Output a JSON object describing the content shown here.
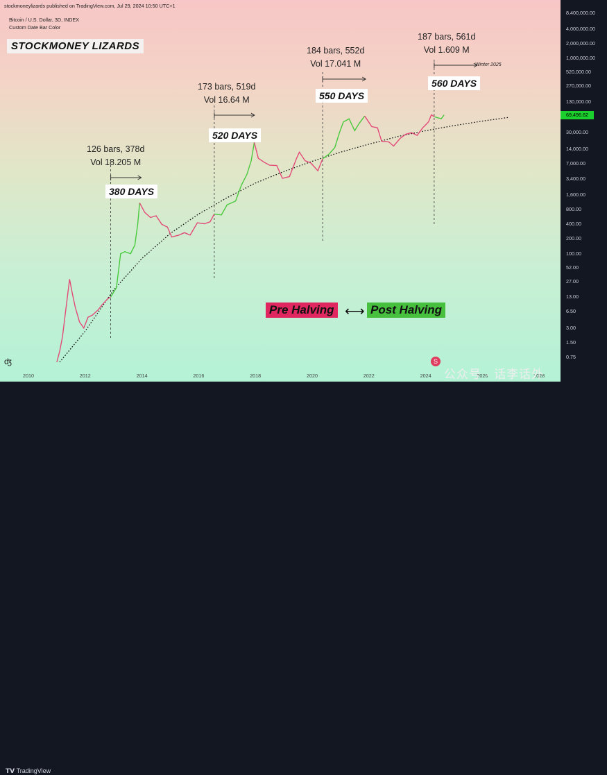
{
  "header": {
    "published": "stockmoneylizards published on TradingView.com, Jul 29, 2024 10:50 UTC+1",
    "symbol": "Bitcoin / U.S. Dollar, 3D, INDEX",
    "subtitle": "Custom Date Bar Color"
  },
  "brand": "STOCKMONEY LIZARDS",
  "annotations": [
    {
      "bars": "126 bars, 378d",
      "vol": "Vol 18.205 M",
      "days": "380 DAYS"
    },
    {
      "bars": "173 bars, 519d",
      "vol": "Vol 16.64 M",
      "days": "520 DAYS"
    },
    {
      "bars": "184 bars, 552d",
      "vol": "Vol 17.041 M",
      "days": "550 DAYS"
    },
    {
      "bars": "187 bars, 561d",
      "vol": "Vol 1.609 M",
      "days": "560 DAYS"
    }
  ],
  "winter_label": "Winter 2025",
  "legend": {
    "pre": "Pre Halving",
    "arrow": "⟷",
    "post": "Post Halving"
  },
  "price_label": "69,496.62",
  "footer": {
    "tradingview": "TradingView",
    "watermark": "公众号 · 话李话外"
  },
  "side_icon": "ʤ",
  "logo_mark": "S",
  "colors": {
    "pre_halving": "#e0275f",
    "post_halving": "#47c03f",
    "price_tag": "#1bd02c",
    "dark_bg": "#131722",
    "pink_line": "#e34a78",
    "green_line": "#49c93d"
  },
  "chart_data": {
    "type": "line",
    "yscale": "log",
    "ylim": [
      0.6,
      9000000
    ],
    "xlim": [
      2009.5,
      2028.6
    ],
    "y_ticks": [
      "8,400,000.00",
      "4,000,000.00",
      "2,000,000.00",
      "1,000,000.00",
      "520,000.00",
      "270,000.00",
      "130,000.00",
      "69,496.62",
      "30,000.00",
      "14,000.00",
      "7,000.00",
      "3,400.00",
      "1,600.00",
      "800.00",
      "400.00",
      "200.00",
      "100.00",
      "52.00",
      "27.00",
      "13.00",
      "6.50",
      "3.00",
      "1.50",
      "0.75"
    ],
    "x_ticks": [
      "2010",
      "2012",
      "2014",
      "2016",
      "2018",
      "2020",
      "2022",
      "2024",
      "2026",
      "2028"
    ],
    "series": [
      {
        "name": "",
        "segments": [
          {
            "phase": "pre",
            "points": [
              [
                2011.0,
                0.6
              ],
              [
                2011.1,
                1.0
              ],
              [
                2011.2,
                2.0
              ],
              [
                2011.3,
                6.0
              ],
              [
                2011.45,
                30.0
              ],
              [
                2011.55,
                15.0
              ],
              [
                2011.65,
                8.0
              ],
              [
                2011.8,
                4.0
              ],
              [
                2011.95,
                3.0
              ],
              [
                2012.1,
                5.0
              ],
              [
                2012.25,
                5.5
              ],
              [
                2012.45,
                7.0
              ],
              [
                2012.6,
                9.0
              ],
              [
                2012.8,
                12.0
              ],
              [
                2012.9,
                13.0
              ]
            ]
          },
          {
            "phase": "post",
            "points": [
              [
                2012.9,
                13.0
              ],
              [
                2013.1,
                20.0
              ],
              [
                2013.25,
                100.0
              ],
              [
                2013.4,
                110.0
              ],
              [
                2013.6,
                100.0
              ],
              [
                2013.75,
                150.0
              ],
              [
                2013.85,
                400.0
              ],
              [
                2013.92,
                1100.0
              ]
            ]
          },
          {
            "phase": "pre",
            "points": [
              [
                2013.92,
                1100.0
              ],
              [
                2014.1,
                700.0
              ],
              [
                2014.3,
                550.0
              ],
              [
                2014.5,
                600.0
              ],
              [
                2014.7,
                400.0
              ],
              [
                2014.9,
                350.0
              ],
              [
                2015.05,
                220.0
              ],
              [
                2015.3,
                240.0
              ],
              [
                2015.5,
                270.0
              ],
              [
                2015.7,
                240.0
              ],
              [
                2015.95,
                430.0
              ],
              [
                2016.2,
                410.0
              ],
              [
                2016.4,
                450.0
              ],
              [
                2016.55,
                650.0
              ]
            ]
          },
          {
            "phase": "post",
            "points": [
              [
                2016.55,
                650.0
              ],
              [
                2016.8,
                620.0
              ],
              [
                2017.0,
                1000.0
              ],
              [
                2017.3,
                1200.0
              ],
              [
                2017.5,
                2500.0
              ],
              [
                2017.7,
                4200.0
              ],
              [
                2017.85,
                8000.0
              ],
              [
                2017.96,
                19000.0
              ]
            ]
          },
          {
            "phase": "pre",
            "points": [
              [
                2017.96,
                19000.0
              ],
              [
                2018.1,
                9000.0
              ],
              [
                2018.3,
                7500.0
              ],
              [
                2018.5,
                6500.0
              ],
              [
                2018.75,
                6400.0
              ],
              [
                2018.95,
                3500.0
              ],
              [
                2019.2,
                3800.0
              ],
              [
                2019.45,
                9000.0
              ],
              [
                2019.55,
                12000.0
              ],
              [
                2019.75,
                8000.0
              ],
              [
                2019.95,
                7200.0
              ],
              [
                2020.2,
                5000.0
              ],
              [
                2020.37,
                8800.0
              ]
            ]
          },
          {
            "phase": "post",
            "points": [
              [
                2020.37,
                8800.0
              ],
              [
                2020.6,
                11000.0
              ],
              [
                2020.8,
                15000.0
              ],
              [
                2020.95,
                29000.0
              ],
              [
                2021.1,
                50000.0
              ],
              [
                2021.3,
                58000.0
              ],
              [
                2021.5,
                33000.0
              ],
              [
                2021.65,
                46000.0
              ],
              [
                2021.85,
                66000.0
              ]
            ]
          },
          {
            "phase": "pre",
            "points": [
              [
                2021.85,
                66000.0
              ],
              [
                2022.1,
                40000.0
              ],
              [
                2022.3,
                38000.0
              ],
              [
                2022.45,
                20000.0
              ],
              [
                2022.7,
                19500.0
              ],
              [
                2022.87,
                16000.0
              ],
              [
                2023.1,
                23000.0
              ],
              [
                2023.3,
                28000.0
              ],
              [
                2023.5,
                30000.0
              ],
              [
                2023.7,
                26500.0
              ],
              [
                2023.9,
                38000.0
              ],
              [
                2024.1,
                50000.0
              ],
              [
                2024.2,
                70000.0
              ],
              [
                2024.3,
                64000.0
              ]
            ]
          },
          {
            "phase": "post",
            "points": [
              [
                2024.3,
                64000.0
              ],
              [
                2024.45,
                60000.0
              ],
              [
                2024.55,
                58000.0
              ],
              [
                2024.65,
                69496.62
              ]
            ]
          }
        ]
      },
      {
        "name": "",
        "style": "dotted",
        "points": [
          [
            2011.1,
            0.6
          ],
          [
            2012.0,
            2.6
          ],
          [
            2013.0,
            18.0
          ],
          [
            2014.0,
            80.0
          ],
          [
            2015.0,
            260.0
          ],
          [
            2016.0,
            650.0
          ],
          [
            2017.0,
            1400.0
          ],
          [
            2018.0,
            2800.0
          ],
          [
            2019.0,
            4800.0
          ],
          [
            2020.0,
            7800.0
          ],
          [
            2021.0,
            12000.0
          ],
          [
            2022.0,
            17500.0
          ],
          [
            2023.0,
            25000.0
          ],
          [
            2024.0,
            33000.0
          ],
          [
            2025.0,
            42000.0
          ],
          [
            2026.0,
            52000.0
          ],
          [
            2026.95,
            62000.0
          ]
        ]
      }
    ],
    "annotation_dates": [
      2012.9,
      2016.55,
      2020.37,
      2024.3
    ]
  }
}
